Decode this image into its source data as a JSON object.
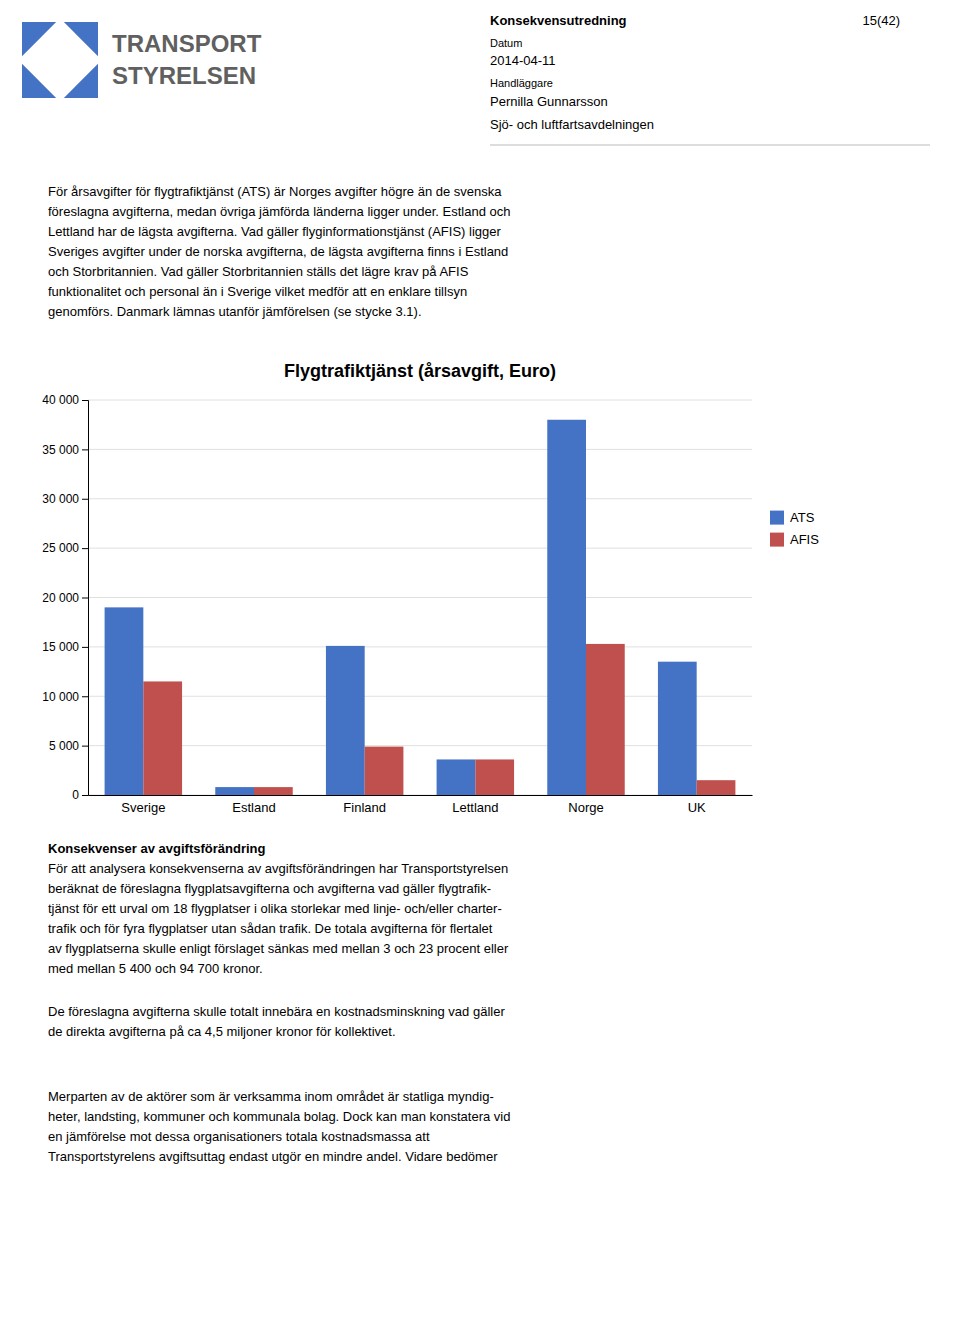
{
  "chart_data": {
    "type": "bar",
    "title": "Flygtrafiktjänst (årsavgift, Euro)",
    "categories": [
      "Sverige",
      "Estland",
      "Finland",
      "Lettland",
      "Norge",
      "UK"
    ],
    "series": [
      {
        "name": "ATS",
        "color": "#4472C4",
        "values": [
          19000,
          800,
          15100,
          3600,
          38000,
          13500
        ]
      },
      {
        "name": "AFIS",
        "color": "#C0504D",
        "values": [
          11500,
          800,
          4900,
          3600,
          15300,
          1500
        ]
      }
    ],
    "ylim": [
      0,
      40000
    ],
    "yticks": [
      0,
      {
        "value": 5000,
        "label": "5 000"
      },
      {
        "value": 10000,
        "label": "10 000"
      },
      {
        "value": 15000,
        "label": "15 000"
      },
      {
        "value": 20000,
        "label": "20 000"
      },
      {
        "value": 25000,
        "label": "25 000"
      },
      {
        "value": 30000,
        "label": "30 000"
      },
      {
        "value": 35000,
        "label": "35 000"
      },
      {
        "value": 40000,
        "label": "40 000"
      }
    ],
    "grid": true,
    "legend": "right"
  },
  "logo": {
    "color": "#4472C4",
    "text_color": "#606060",
    "text_lines": [
      "TRANSPORT",
      "STYRELSEN"
    ]
  },
  "header": {
    "doc_type": "Konsekvensutredning",
    "page": "15(42)",
    "date_label": "Datum",
    "date": "2014-04-11",
    "handler_label": "Handläggare",
    "handler": "Pernilla Gunnarsson",
    "dept": "Sjö- och luftfartsavdelningen"
  },
  "body_text_lines": [
    "För årsavgifter för flygtrafiktjänst (ATS) är Norges avgifter högre än de svenska",
    "föreslagna avgifterna, medan övriga jämförda länderna ligger under. Estland och",
    "Lettland har de lägsta avgifterna. Vad gäller flyginformationstjänst (AFIS) ligger",
    "Sveriges avgifter under de norska avgifterna, de lägsta avgifterna finns i Estland",
    "och Storbritannien. Vad gäller Storbritannien ställs det lägre krav på AFIS",
    "funktionalitet och personal än i Sverige vilket medför att en enklare tillsyn",
    "genomförs. Danmark lämnas utanför jämförelsen (se stycke 3.1)."
  ],
  "section_heading": "Konsekvenser av avgiftsförändring",
  "section_text_lines": [
    "För att analysera konsekvenserna av avgiftsförändringen har Transportstyrelsen",
    "beräknat de föreslagna flygplatsavgifterna och avgifterna vad gäller flygtrafik-",
    "tjänst för ett urval om 18 flygplatser i olika storlekar med linje- och/eller charter-",
    "trafik och för fyra flygplatser utan sådan trafik. De totala avgifterna för flertalet",
    "av flygplatserna skulle enligt förslaget sänkas med mellan 3 och 23 procent eller",
    "med mellan 5 400 och 94 700 kronor."
  ],
  "section2_lines": [
    "De föreslagna avgifterna skulle totalt innebära en kostnadsminskning vad gäller",
    "de direkta avgifterna på ca 4,5 miljoner kronor för kollektivet."
  ],
  "section3_lines": [
    "Merparten av de aktörer som är verksamma inom området är statliga myndig-",
    "heter, landsting, kommuner och kommunala bolag. Dock kan man konstatera vid",
    "en jämförelse mot dessa organisationers totala kostnadsmassa att",
    "Transportstyrelens avgiftsuttag endast utgör en mindre andel. Vidare bedömer"
  ]
}
